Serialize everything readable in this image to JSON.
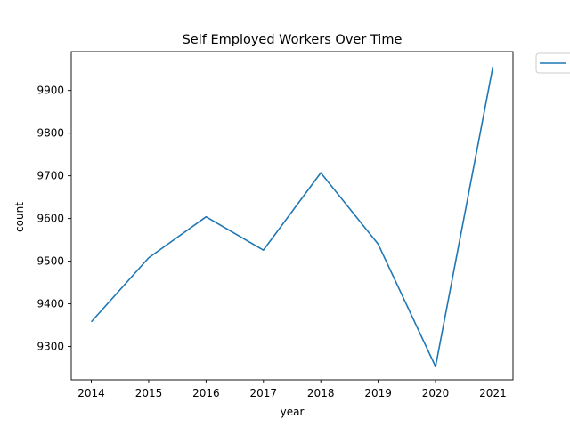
{
  "chart_data": {
    "type": "line",
    "title": "Self Employed Workers Over Time",
    "xlabel": "year",
    "ylabel": "count",
    "x": [
      2014,
      2015,
      2016,
      2017,
      2018,
      2019,
      2020,
      2021
    ],
    "series": [
      {
        "values": [
          9358,
          9508,
          9604,
          9526,
          9707,
          9540,
          9253,
          9956
        ],
        "color": "#1f77b4"
      }
    ],
    "ylim": [
      9222,
      9991
    ],
    "yticks": [
      9300,
      9400,
      9500,
      9600,
      9700,
      9800,
      9900
    ],
    "xlim": [
      2013.65,
      2021.35
    ],
    "grid": false,
    "legend": {
      "placement": "outside-top-right",
      "label": ""
    }
  }
}
